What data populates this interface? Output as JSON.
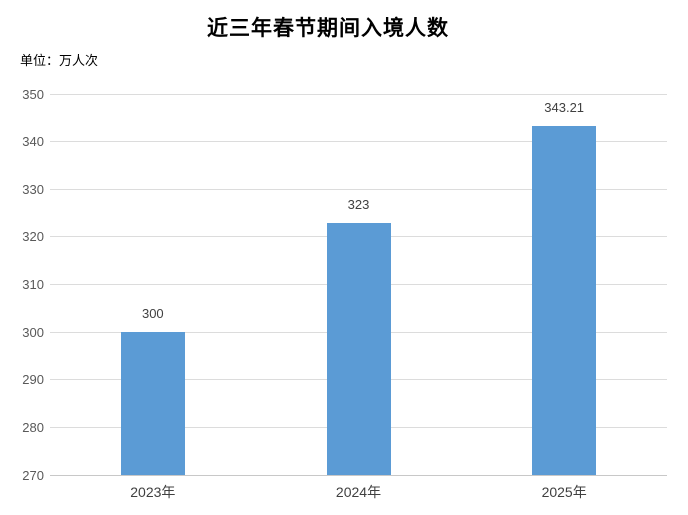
{
  "chart_data": {
    "type": "bar",
    "title": "近三年春节期间入境人数",
    "unit_label": "单位：万人次",
    "categories": [
      "2023年",
      "2024年",
      "2025年"
    ],
    "values": [
      300,
      323,
      343.21
    ],
    "value_labels": [
      "300",
      "323",
      "343.21"
    ],
    "xlabel": "",
    "ylabel": "",
    "ylim": [
      270,
      350
    ],
    "ytick_interval": 10,
    "yticks": [
      270,
      280,
      290,
      300,
      310,
      320,
      330,
      340,
      350
    ],
    "grid": true,
    "legend_position": "none",
    "colors": {
      "bar": "#5b9bd5",
      "gridline": "#dcdcdc",
      "axis_line": "#c8c8c8",
      "tick_label": "#595959",
      "data_label": "#404040",
      "title": "#000000",
      "background": "#ffffff"
    }
  }
}
